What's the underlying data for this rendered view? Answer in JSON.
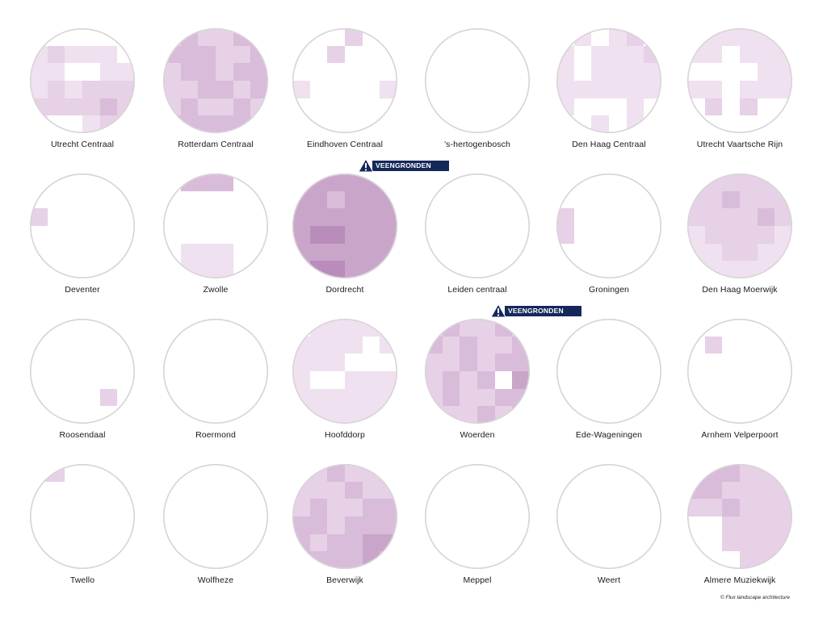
{
  "colors": {
    "cell_scale": [
      "#f6eef6",
      "#efe1ef",
      "#e6d1e6",
      "#d9bcd9",
      "#caa5ca",
      "#b98cbb"
    ],
    "ring": "#d8d4d8",
    "warning_bg": "#14285a",
    "warning_text": "#ffffff"
  },
  "warning_label": "VEENGRONDEN",
  "credit": "© Flux landscape architecture",
  "stations": [
    {
      "name": "Utrecht Centraal",
      "grid": [
        "000000",
        "121110",
        "110011",
        "121222",
        "222232",
        "100122"
      ],
      "warning": false
    },
    {
      "name": "Rotterdam Centraal",
      "grid": [
        "232233",
        "333223",
        "233233",
        "223323",
        "232232",
        "333332"
      ],
      "warning": false
    },
    {
      "name": "Eindhoven Centraal",
      "grid": [
        "000200",
        "002000",
        "000000",
        "100001",
        "000000",
        "000000"
      ],
      "warning": false
    },
    {
      "name": "'s-hertogenbosch",
      "grid": [
        "000000",
        "000000",
        "000000",
        "000000",
        "000000",
        "000000"
      ],
      "warning": false
    },
    {
      "name": "Den Haag Centraal",
      "grid": [
        "010120",
        "101112",
        "101111",
        "111111",
        "100010",
        "001010"
      ],
      "warning": false
    },
    {
      "name": "Utrecht Vaartsche Rijn",
      "grid": [
        "111111",
        "110111",
        "000011",
        "110111",
        "020200",
        "000000"
      ],
      "warning": false
    },
    {
      "name": "Deventer",
      "grid": [
        "000000",
        "000000",
        "200000",
        "000000",
        "000000",
        "000000"
      ],
      "warning": false
    },
    {
      "name": "Zwolle",
      "grid": [
        "033300",
        "000000",
        "000000",
        "000000",
        "011100",
        "011100"
      ],
      "warning": false
    },
    {
      "name": "Dordrecht",
      "grid": [
        "444444",
        "443444",
        "444444",
        "455444",
        "444444",
        "455444"
      ],
      "warning": true
    },
    {
      "name": "Leiden centraal",
      "grid": [
        "000000",
        "000000",
        "000000",
        "000000",
        "000000",
        "000000"
      ],
      "warning": false
    },
    {
      "name": "Groningen",
      "grid": [
        "000000",
        "000000",
        "200000",
        "200000",
        "000000",
        "000000"
      ],
      "warning": false
    },
    {
      "name": "Den Haag Moerwijk",
      "grid": [
        "222222",
        "223222",
        "222232",
        "122221",
        "112211",
        "111111"
      ],
      "warning": false
    },
    {
      "name": "Roosendaal",
      "grid": [
        "000000",
        "000000",
        "000000",
        "000000",
        "000020",
        "000000"
      ],
      "warning": false
    },
    {
      "name": "Roermond",
      "grid": [
        "000000",
        "000000",
        "000000",
        "000000",
        "000000",
        "000000"
      ],
      "warning": false
    },
    {
      "name": "Hoofddorp",
      "grid": [
        "011111",
        "111101",
        "111000",
        "100111",
        "111111",
        "111111"
      ],
      "warning": false
    },
    {
      "name": "Woerden",
      "grid": [
        "232232",
        "323223",
        "223233",
        "232304",
        "232233",
        "222323"
      ],
      "warning": true
    },
    {
      "name": "Ede-Wageningen",
      "grid": [
        "000000",
        "000000",
        "000000",
        "000000",
        "000000",
        "000000"
      ],
      "warning": false
    },
    {
      "name": "Arnhem Velperpoort",
      "grid": [
        "000000",
        "020000",
        "000000",
        "000000",
        "000000",
        "000000"
      ],
      "warning": false
    },
    {
      "name": "Twello",
      "grid": [
        "220000",
        "000000",
        "000000",
        "000000",
        "000000",
        "000000"
      ],
      "warning": false
    },
    {
      "name": "Wolfheze",
      "grid": [
        "000000",
        "000000",
        "000000",
        "000000",
        "000000",
        "000000"
      ],
      "warning": false
    },
    {
      "name": "Beverwijk",
      "grid": [
        "223222",
        "222322",
        "232233",
        "332333",
        "323344",
        "333343"
      ],
      "warning": false
    },
    {
      "name": "Meppel",
      "grid": [
        "000000",
        "000000",
        "000000",
        "000000",
        "000000",
        "000000"
      ],
      "warning": false
    },
    {
      "name": "Weert",
      "grid": [
        "000000",
        "000000",
        "000000",
        "000000",
        "000000",
        "000000"
      ],
      "warning": false
    },
    {
      "name": "Almere Muziekwijk",
      "grid": [
        "333222",
        "332222",
        "223222",
        "002222",
        "002222",
        "000222"
      ],
      "warning": false
    }
  ]
}
